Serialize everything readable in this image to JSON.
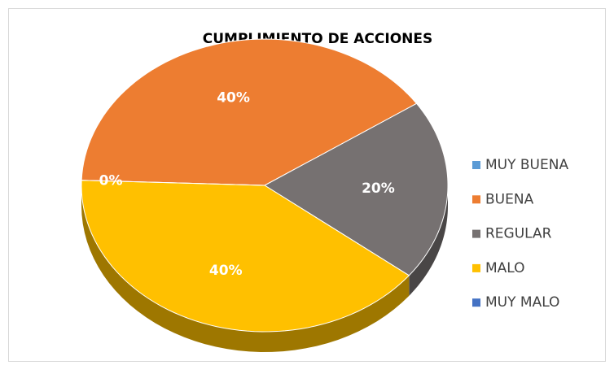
{
  "chart_data": {
    "type": "pie",
    "title": "CUMPLIMIENTO DE ACCIONES",
    "categories": [
      "MUY BUENA",
      "BUENA",
      "REGULAR",
      "MALO",
      "MUY MALO"
    ],
    "values": [
      0,
      40,
      20,
      40,
      0
    ],
    "value_labels": [
      "0%",
      "40%",
      "20%",
      "40%",
      null
    ],
    "colors": [
      "#5b9bd5",
      "#ed7d31",
      "#767171",
      "#ffc000",
      "#4472c4"
    ],
    "legend": "right"
  }
}
